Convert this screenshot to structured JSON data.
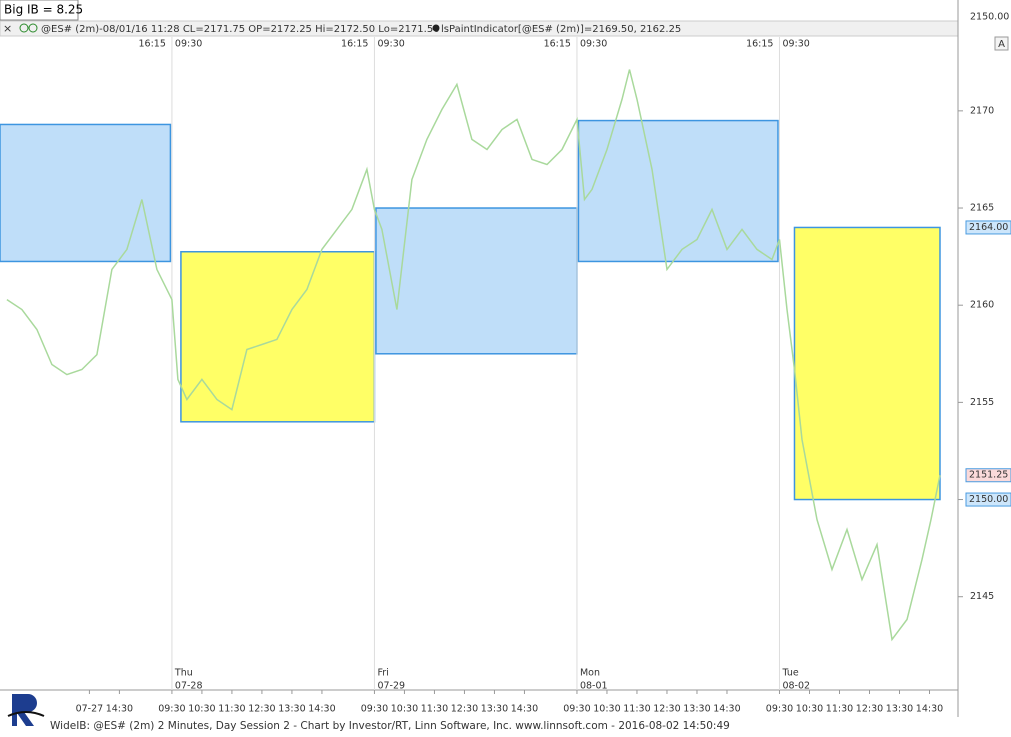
{
  "header": {
    "big_ib": "Big IB = 8.25",
    "symbol_info": "@ES# (2m)-08/01/16 11:28 CL=2171.75 OP=2172.25 Hi=2172.50 Lo=2171.50",
    "indicator_info": "lsPaintIndicator[@ES# (2m)]=2169.50, 2162.25",
    "scale_button": "A",
    "upper_pane_tick": "2150.00"
  },
  "footer": "WideIB: @ES# (2m) 2 Minutes, Day Session 2 - Chart by Investor/RT, Linn Software, Inc. www.linnsoft.com - 2016-08-02 14:50:49",
  "chart_data": {
    "type": "line",
    "color": "#a9d99c",
    "grid": false,
    "xlim": [
      -5.73,
      26.2
    ],
    "ylim": [
      2140.2,
      2173.8
    ],
    "yticks": [
      2145,
      2150,
      2155,
      2160,
      2165,
      2170
    ],
    "xticks": [
      {
        "value": -2.75,
        "label": "07-27"
      },
      {
        "value": -1.75,
        "label": "14:30"
      },
      {
        "value": 0,
        "label": "09:30"
      },
      {
        "value": 1,
        "label": "10:30"
      },
      {
        "value": 2,
        "label": "11:30"
      },
      {
        "value": 3,
        "label": "12:30"
      },
      {
        "value": 4,
        "label": "13:30"
      },
      {
        "value": 5,
        "label": "14:30"
      },
      {
        "value": 6.75,
        "label": "09:30"
      },
      {
        "value": 7.75,
        "label": "10:30"
      },
      {
        "value": 8.75,
        "label": "11:30"
      },
      {
        "value": 9.75,
        "label": "12:30"
      },
      {
        "value": 10.75,
        "label": "13:30"
      },
      {
        "value": 11.75,
        "label": "14:30"
      },
      {
        "value": 13.5,
        "label": "09:30"
      },
      {
        "value": 14.5,
        "label": "10:30"
      },
      {
        "value": 15.5,
        "label": "11:30"
      },
      {
        "value": 16.5,
        "label": "12:30"
      },
      {
        "value": 17.5,
        "label": "13:30"
      },
      {
        "value": 18.5,
        "label": "14:30"
      },
      {
        "value": 20.25,
        "label": "09:30"
      },
      {
        "value": 21.25,
        "label": "10:30"
      },
      {
        "value": 22.25,
        "label": "11:30"
      },
      {
        "value": 23.25,
        "label": "12:30"
      },
      {
        "value": 24.25,
        "label": "13:30"
      },
      {
        "value": 25.25,
        "label": "14:30"
      }
    ],
    "sessions": [
      {
        "value": 0,
        "close": "16:15",
        "open": "09:30",
        "day": "Thu",
        "date": "07-28"
      },
      {
        "value": 6.75,
        "close": "16:15",
        "open": "09:30",
        "day": "Fri",
        "date": "07-29"
      },
      {
        "value": 13.5,
        "close": "16:15",
        "open": "09:30",
        "day": "Mon",
        "date": "08-01"
      },
      {
        "value": 20.25,
        "close": "16:15",
        "open": "09:30",
        "day": "Tue",
        "date": "08-02"
      }
    ],
    "ib_boxes": [
      {
        "x0": -5.73,
        "x1": -0.05,
        "top": 2169.3,
        "bottom": 2162.25,
        "color": "#bfdef9"
      },
      {
        "x0": 0.3,
        "x1": 6.75,
        "top": 2162.75,
        "bottom": 2154.0,
        "color": "#ffff66"
      },
      {
        "x0": 6.8,
        "x1": 13.5,
        "top": 2165.0,
        "bottom": 2157.5,
        "color": "#bfdef9"
      },
      {
        "x0": 13.55,
        "x1": 20.2,
        "top": 2169.5,
        "bottom": 2162.25,
        "color": "#bfdef9"
      },
      {
        "x0": 20.75,
        "x1": 25.6,
        "top": 2164.0,
        "bottom": 2150.0,
        "color": "#ffff66"
      }
    ],
    "price_labels": [
      {
        "value": 2164,
        "label": "2164.00",
        "color": "#cde6fb"
      },
      {
        "value": 2150,
        "label": "2150.00",
        "color": "#cde6fb"
      },
      {
        "value": 2151.25,
        "label": "2151.25",
        "color": "#fbdada"
      }
    ],
    "x": [
      -5.5,
      -5,
      -4.5,
      -4,
      -3.5,
      -3,
      -2.5,
      -2,
      -1.5,
      -1,
      -0.5,
      0,
      0.2,
      0.5,
      1,
      1.5,
      2,
      2.5,
      3,
      3.5,
      4,
      4.5,
      5,
      5.5,
      6,
      6.5,
      6.75,
      7,
      7.5,
      8,
      8.5,
      9,
      9.5,
      10,
      10.5,
      11,
      11.5,
      12,
      12.5,
      13,
      13.5,
      13.75,
      14,
      14.5,
      15,
      15.25,
      15.5,
      16,
      16.5,
      17,
      17.5,
      18,
      18.5,
      19,
      19.5,
      20,
      20.25,
      20.5,
      20.75,
      21,
      21.5,
      22,
      22.5,
      23,
      23.5,
      24,
      24.5,
      25,
      25.3,
      25.6
    ],
    "values": [
      2160.29,
      2159.78,
      2158.75,
      2156.95,
      2156.43,
      2156.69,
      2157.46,
      2161.84,
      2162.87,
      2165.44,
      2161.84,
      2160.29,
      2156.18,
      2155.15,
      2156.18,
      2155.15,
      2154.63,
      2157.72,
      2157.98,
      2158.24,
      2159.78,
      2160.81,
      2162.87,
      2163.9,
      2164.93,
      2166.99,
      2164.93,
      2163.9,
      2159.78,
      2166.47,
      2168.53,
      2170.07,
      2171.36,
      2168.53,
      2168.01,
      2169.04,
      2169.56,
      2167.5,
      2167.24,
      2168.01,
      2169.56,
      2165.44,
      2165.96,
      2168.01,
      2170.59,
      2172.13,
      2170.59,
      2166.99,
      2161.84,
      2162.87,
      2163.38,
      2164.93,
      2162.87,
      2163.9,
      2162.87,
      2162.35,
      2163.38,
      2159.78,
      2156.69,
      2153.09,
      2148.97,
      2146.4,
      2148.46,
      2145.88,
      2147.68,
      2142.8,
      2143.83,
      2146.91,
      2148.97,
      2151.25
    ]
  }
}
